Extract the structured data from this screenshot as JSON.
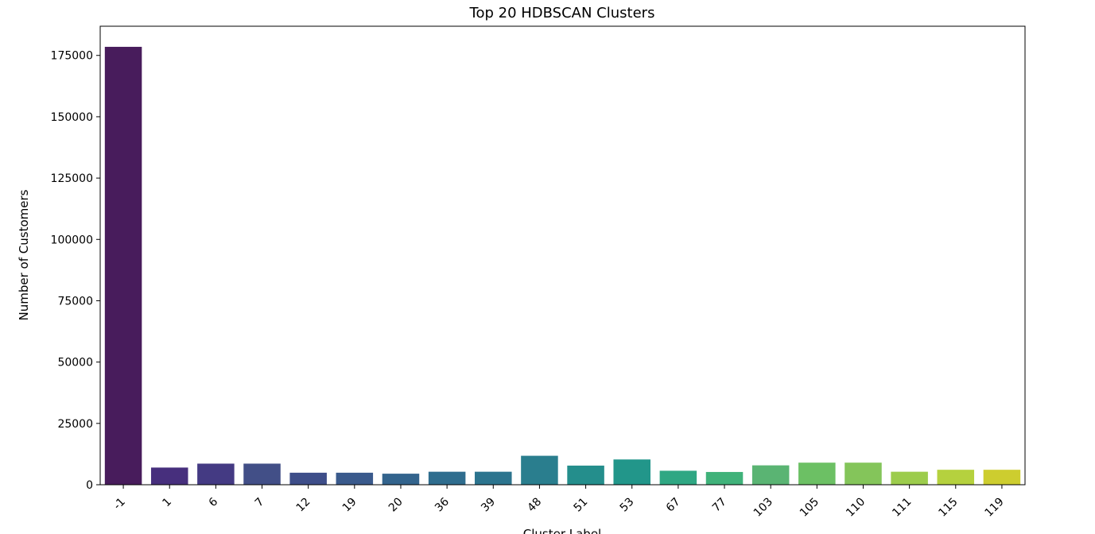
{
  "chart_data": {
    "type": "bar",
    "title": "Top 20 HDBSCAN Clusters",
    "xlabel": "Cluster Label",
    "ylabel": "Number of Customers",
    "categories": [
      "-1",
      "1",
      "6",
      "7",
      "12",
      "19",
      "20",
      "36",
      "39",
      "48",
      "51",
      "53",
      "67",
      "77",
      "103",
      "105",
      "110",
      "111",
      "115",
      "119"
    ],
    "values": [
      178500,
      7000,
      8600,
      8600,
      4900,
      4900,
      4500,
      5300,
      5300,
      11800,
      7800,
      10300,
      5700,
      5200,
      7900,
      9000,
      9000,
      5300,
      6100,
      6100
    ],
    "ylim": [
      0,
      186900
    ],
    "yticks": [
      0,
      25000,
      50000,
      75000,
      100000,
      125000,
      150000,
      175000
    ],
    "ytick_labels": [
      "0",
      "25000",
      "50000",
      "75000",
      "100000",
      "125000",
      "150000",
      "175000"
    ],
    "colors": [
      "#481c5c",
      "#472f7d",
      "#443a83",
      "#424f87",
      "#3e4e89",
      "#3a5a8c",
      "#33648d",
      "#2f6d8e",
      "#2c748e",
      "#2a7e8e",
      "#248e8c",
      "#22968a",
      "#2fa783",
      "#40b27a",
      "#5ab473",
      "#6cc064",
      "#84c55a",
      "#9ccc4c",
      "#b5d13e",
      "#cdcd2f"
    ],
    "grid": false,
    "legend": "none"
  }
}
